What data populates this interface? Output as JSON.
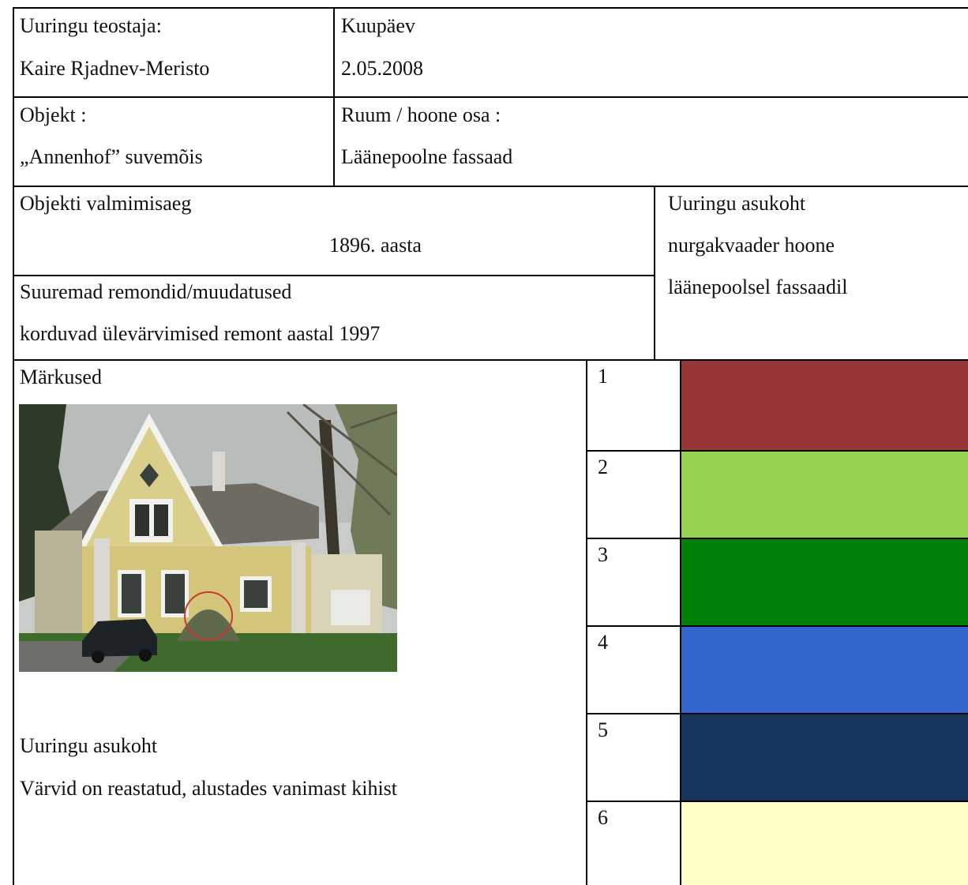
{
  "header": {
    "investigator_label": "Uuringu teostaja:",
    "investigator_name": "Kaire Rjadnev-Meristo",
    "date_label": "Kuupäev",
    "date_value": "2.05.2008"
  },
  "object": {
    "object_label": "Objekt :",
    "object_name": "„Annenhof” suvemõis",
    "room_label": "Ruum / hoone osa :",
    "room_value": "Läänepoolne fassaad"
  },
  "construction": {
    "completion_label": "Objekti valmimisaeg",
    "completion_value": "1896. aasta",
    "repairs_label": "Suuremad remondid/muudatused",
    "repairs_value": "korduvad ülevärvimised  remont aastal 1997"
  },
  "location": {
    "label": "Uuringu asukoht",
    "line1": "nurgakvaader hoone",
    "line2": "läänepoolsel fassaadil"
  },
  "notes": {
    "label": "Märkused",
    "location_label": "Uuringu asukoht",
    "order_note": "Värvid on reastatud, alustades vanimast kihist"
  },
  "layers": [
    {
      "number": "1",
      "color": "#963636"
    },
    {
      "number": "2",
      "color": "#95d350"
    },
    {
      "number": "3",
      "color": "#00820a"
    },
    {
      "number": "4",
      "color": "#3366cc"
    },
    {
      "number": "5",
      "color": "#17365d"
    },
    {
      "number": "6",
      "color": "#ffffca"
    }
  ]
}
